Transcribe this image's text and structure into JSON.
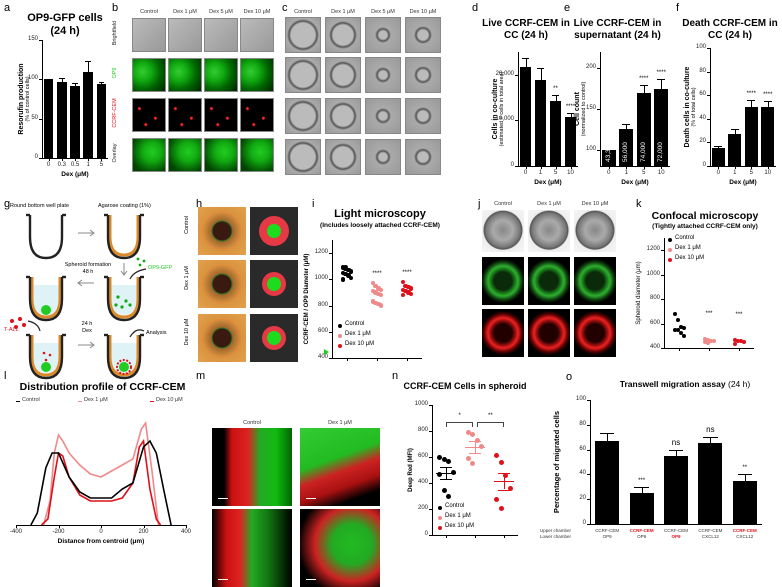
{
  "panel_letters": [
    "a",
    "b",
    "c",
    "d",
    "e",
    "f",
    "g",
    "h",
    "i",
    "j",
    "k",
    "l",
    "m",
    "n",
    "o"
  ],
  "colors": {
    "black": "#000000",
    "pink": "#f08a8a",
    "red": "#e0101a",
    "green": "#22cc22",
    "orange": "#d98a2b"
  },
  "panel_b": {
    "columns": [
      "Control",
      "Dex 1 μM",
      "Dex 5 μM",
      "Dex 10 μM"
    ],
    "rows": [
      "Brightfield",
      "OP9",
      "CCRF-CEM",
      "Overlay"
    ]
  },
  "panel_c": {
    "columns": [
      "Control",
      "Dex 1 μM",
      "Dex 5 μM",
      "Dex 10 μM"
    ]
  },
  "panel_g": {
    "step1": "Round bottom well plate",
    "step2": "Agarose coating (1%)",
    "step3": "OP9-GFP",
    "step4": "Spheroid formation",
    "step4b": "48 h",
    "step5": "T-ALL",
    "step6": "24 h",
    "step6b": "Dex",
    "step7": "Analysis"
  },
  "panel_h": {
    "rows": [
      "Control",
      "Dex 1 μM",
      "Dex 10 μM"
    ]
  },
  "panel_j": {
    "columns": [
      "Control",
      "Dex 1 μM",
      "Dex 10 μM"
    ]
  },
  "panel_m": {
    "columns": [
      "Control",
      "Dex 1 μM"
    ]
  },
  "chart_data": [
    {
      "id": "a",
      "type": "bar",
      "title": "OP9-GFP cells (24 h)",
      "categories": [
        "0",
        "0.3",
        "0.5",
        "1",
        "5"
      ],
      "values": [
        100,
        97,
        92,
        109,
        94
      ],
      "errors": [
        0,
        5,
        3,
        14,
        2
      ],
      "xlabel": "Dex (μM)",
      "ylabel": "Resorufin production",
      "ylabel2": "(% of control cells)",
      "ylim": [
        0,
        150
      ],
      "yticks": [
        0,
        50,
        100,
        150
      ]
    },
    {
      "id": "d",
      "type": "bar",
      "title": "Live CCRF-CEM in CC (24 h)",
      "categories": [
        "0",
        "1",
        "5",
        "10"
      ],
      "values": [
        21800,
        18800,
        14200,
        10800
      ],
      "errors": [
        1800,
        2600,
        1400,
        800
      ],
      "significance": [
        "",
        "",
        "**",
        "****"
      ],
      "xlabel": "Dex (μM)",
      "ylabel": "Cells in co-culture",
      "ylabel2": "(estimated # cells in total area)",
      "ylim": [
        0,
        25000
      ],
      "yticks": [
        0,
        10000,
        20000
      ],
      "ytick_labels": [
        "0",
        "10,000",
        "20,000"
      ]
    },
    {
      "id": "e",
      "type": "bar",
      "title": "Live CCRF-CEM in supernatant (24 h)",
      "categories": [
        "0",
        "1",
        "5",
        "10"
      ],
      "values": [
        100,
        125,
        170,
        175
      ],
      "errors": [
        0,
        6,
        9,
        12
      ],
      "bar_labels": [
        "43,333",
        "56,000",
        "74,000",
        "72,000"
      ],
      "significance": [
        "",
        "",
        "****",
        "****"
      ],
      "xlabel": "Dex (μM)",
      "ylabel": "Cell count",
      "ylabel2": "(normalized to control)",
      "ylim": [
        80,
        220
      ],
      "yticks": [
        100,
        150,
        200
      ]
    },
    {
      "id": "f",
      "type": "bar",
      "title": "Death CCRF-CEM in CC (24 h)",
      "categories": [
        "0",
        "1",
        "5",
        "10"
      ],
      "values": [
        15,
        27,
        50,
        50
      ],
      "errors": [
        2,
        4,
        6,
        5
      ],
      "significance": [
        "",
        "",
        "****",
        "****"
      ],
      "xlabel": "Dex (μM)",
      "ylabel": "Death cells in co-culture",
      "ylabel2": "(% of total cells)",
      "ylim": [
        0,
        100
      ],
      "yticks": [
        0,
        20,
        40,
        60,
        80,
        100
      ]
    },
    {
      "id": "i",
      "type": "scatter",
      "title": "Light microscopy",
      "subtitle": "(Includes loosely attached CCRF-CEM)",
      "ylabel": "CCRF-CEM / OP9 Diameter (μM)",
      "ylim": [
        400,
        1300
      ],
      "yticks": [
        400,
        600,
        800,
        1000,
        1200
      ],
      "legend": [
        "Control",
        "Dex 1 μM",
        "Dex 10 μM"
      ],
      "series": [
        {
          "name": "Control",
          "values": [
            1090,
            1080,
            1070,
            1060,
            1050,
            1040,
            1030,
            1010,
            1000,
            1090,
            1070
          ]
        },
        {
          "name": "Dex 1 μM",
          "values": [
            970,
            950,
            930,
            920,
            910,
            900,
            890,
            880,
            830,
            820,
            810,
            800
          ]
        },
        {
          "name": "Dex 10 μM",
          "values": [
            980,
            950,
            940,
            930,
            920,
            910,
            900,
            890,
            880
          ]
        }
      ],
      "significance": [
        "",
        "****",
        "****"
      ]
    },
    {
      "id": "k",
      "type": "scatter",
      "title": "Confocal microscopy",
      "subtitle": "(Tightly attached CCRF-CEM  only)",
      "ylabel": "Spheroid diameter (μm)",
      "ylim": [
        400,
        1300
      ],
      "yticks": [
        400,
        600,
        800,
        1000,
        1200
      ],
      "legend": [
        "Control",
        "Dex 1 μM",
        "Dex 10 μM"
      ],
      "series": [
        {
          "name": "Control",
          "values": [
            680,
            630,
            575,
            560,
            550,
            550,
            525,
            495
          ]
        },
        {
          "name": "Dex 1 μM",
          "values": [
            470,
            465,
            460,
            455,
            450,
            445
          ]
        },
        {
          "name": "Dex 10 μM",
          "values": [
            465,
            460,
            455,
            450,
            430
          ]
        }
      ],
      "significance": [
        "",
        "***",
        "***"
      ]
    },
    {
      "id": "l",
      "type": "line",
      "title": "Distribution profile of CCRF-CEM",
      "xlabel": "Distance from centroid (μm)",
      "xlim": [
        -400,
        400
      ],
      "xticks": [
        -400,
        -200,
        0,
        200,
        400
      ],
      "legend": [
        "Control",
        "Dex 1 μM",
        "Dex 10 μM"
      ],
      "series": [
        {
          "name": "Control",
          "x": [
            -330,
            -300,
            -260,
            -230,
            -200,
            -150,
            -100,
            -50,
            0,
            50,
            100,
            150,
            200,
            230,
            260,
            300,
            330
          ],
          "y": [
            0,
            20,
            95,
            120,
            120,
            80,
            55,
            45,
            45,
            45,
            60,
            70,
            130,
            140,
            120,
            50,
            0
          ]
        },
        {
          "name": "Dex 1 μM",
          "x": [
            -270,
            -240,
            -220,
            -200,
            -180,
            -150,
            -100,
            -50,
            0,
            50,
            100,
            150,
            190,
            210,
            240,
            270
          ],
          "y": [
            0,
            40,
            120,
            150,
            140,
            120,
            100,
            85,
            80,
            90,
            100,
            110,
            160,
            170,
            90,
            0
          ]
        },
        {
          "name": "Dex 10 μM",
          "x": [
            -280,
            -250,
            -220,
            -200,
            -180,
            -150,
            -100,
            -50,
            0,
            50,
            100,
            150,
            180,
            200,
            230,
            260,
            280
          ],
          "y": [
            0,
            10,
            80,
            120,
            115,
            80,
            50,
            40,
            40,
            40,
            45,
            70,
            130,
            140,
            60,
            10,
            0
          ]
        }
      ]
    },
    {
      "id": "n",
      "type": "scatter",
      "title": "CCRF-CEM Cells in spheroid",
      "ylabel": "Deep Red (MFI)",
      "ylim": [
        0,
        1000
      ],
      "yticks": [
        0,
        200,
        400,
        600,
        800,
        1000
      ],
      "legend": [
        "Control",
        "Dex 1 μM",
        "Dex 10 μM"
      ],
      "series": [
        {
          "name": "Control",
          "values": [
            600,
            580,
            565,
            480,
            465,
            345,
            300
          ],
          "mean": 475,
          "sem": 45
        },
        {
          "name": "Dex 1 μM",
          "values": [
            790,
            770,
            730,
            680,
            590,
            550
          ],
          "mean": 675,
          "sem": 45
        },
        {
          "name": "Dex 10 μM",
          "values": [
            615,
            555,
            460,
            360,
            275,
            205
          ],
          "mean": 415,
          "sem": 65
        }
      ],
      "brackets": [
        {
          "from": 0,
          "to": 1,
          "label": "*"
        },
        {
          "from": 1,
          "to": 2,
          "label": "**"
        }
      ]
    },
    {
      "id": "o",
      "type": "bar",
      "title": "Transwell migration assay",
      "title_suffix": "(24 h)",
      "ylabel": "Percentage of migrated cells",
      "ylim": [
        0,
        100
      ],
      "yticks": [
        0,
        20,
        40,
        60,
        80,
        100
      ],
      "row_labels": [
        "Upper chamber",
        "Lower chamber"
      ],
      "categories": [
        {
          "upper": "CCRF-CEM",
          "lower": "OP9",
          "upper_red": false,
          "lower_red": false
        },
        {
          "upper": "CCRF-CEM",
          "lower": "OP9",
          "upper_red": true,
          "lower_red": false
        },
        {
          "upper": "CCRF-CEM",
          "lower": "OP9",
          "upper_red": false,
          "lower_red": true
        },
        {
          "upper": "CCRF-CEM",
          "lower": "CXCL12",
          "upper_red": false,
          "lower_red": false
        },
        {
          "upper": "CCRF-CEM",
          "lower": "CXCL12",
          "upper_red": true,
          "lower_red": false
        }
      ],
      "values": [
        67,
        25,
        55,
        65,
        35
      ],
      "errors": [
        6,
        5,
        5,
        5,
        5
      ],
      "significance": [
        "",
        "***",
        "ns",
        "ns",
        "**"
      ]
    }
  ]
}
